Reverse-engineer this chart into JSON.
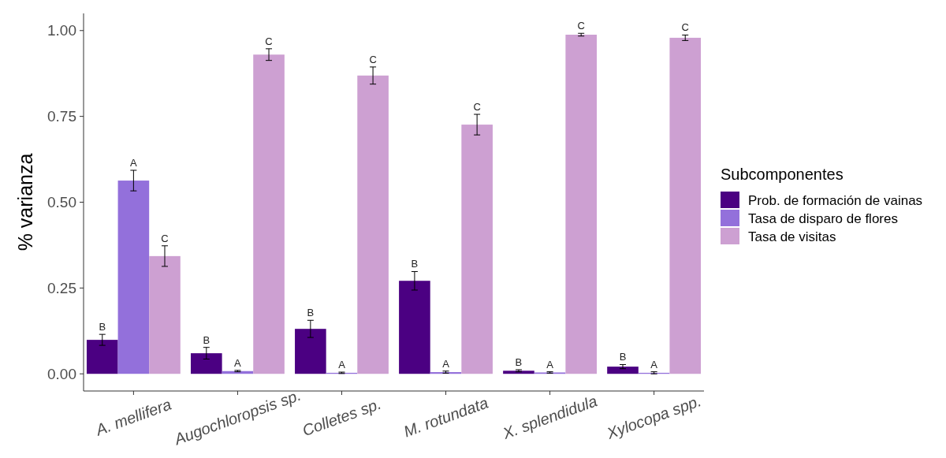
{
  "chart_data": {
    "type": "bar",
    "ylabel": "% varianza",
    "legend_title": "Subcomponentes",
    "legend": "right",
    "grid": false,
    "categories": [
      "A. mellifera",
      "Augochloropsis sp.",
      "Colletes sp.",
      "M. rotundata",
      "X. splendidula",
      "Xylocopa spp."
    ],
    "ylim": [
      -0.05,
      1.05
    ],
    "yticks": [
      {
        "value": 0,
        "label": "0.00"
      },
      {
        "value": 0.25,
        "label": "0.25"
      },
      {
        "value": 0.5,
        "label": "0.50"
      },
      {
        "value": 0.75,
        "label": "0.75"
      },
      {
        "value": 1,
        "label": "1.00"
      }
    ],
    "series": [
      {
        "name": "Prob. de formación de vainas",
        "color": "#4b0082",
        "values": [
          0.099,
          0.06,
          0.131,
          0.271,
          0.009,
          0.021
        ],
        "errors": [
          0.016,
          0.017,
          0.025,
          0.027,
          0.003,
          0.006
        ],
        "value_labels": [
          "B",
          "B",
          "B",
          "B",
          "B",
          "B"
        ]
      },
      {
        "name": "Tasa de disparo de flores",
        "color": "#9370db",
        "values": [
          0.563,
          0.008,
          0.003,
          0.005,
          0.004,
          0.003
        ],
        "errors": [
          0.03,
          0.002,
          0.002,
          0.003,
          0.002,
          0.003
        ],
        "value_labels": [
          "A",
          "A",
          "A",
          "A",
          "A",
          "A"
        ]
      },
      {
        "name": "Tasa de visitas",
        "color": "#cda0d2",
        "values": [
          0.343,
          0.93,
          0.869,
          0.726,
          0.988,
          0.979
        ],
        "errors": [
          0.03,
          0.017,
          0.025,
          0.03,
          0.004,
          0.008
        ],
        "value_labels": [
          "C",
          "C",
          "C",
          "C",
          "C",
          "C"
        ]
      }
    ]
  }
}
